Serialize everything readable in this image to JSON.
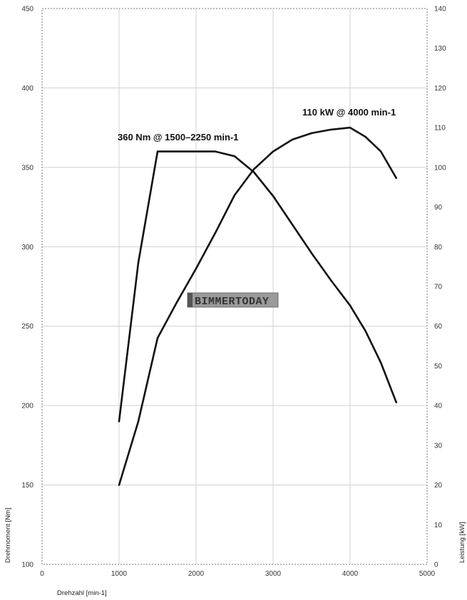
{
  "chart_data": {
    "type": "line",
    "title": "",
    "xlabel": "Drehzahl [min-1]",
    "ylabel_left": "Drehmoment [Nm]",
    "ylabel_right": "Leistung [kW]",
    "xlim": [
      0,
      5000
    ],
    "ylim_left": [
      100,
      450
    ],
    "ylim_right": [
      0,
      140
    ],
    "x_ticks": [
      0,
      1000,
      2000,
      3000,
      4000,
      5000
    ],
    "y_left_ticks": [
      100,
      150,
      200,
      250,
      300,
      350,
      400,
      450
    ],
    "y_right_ticks": [
      0,
      10,
      20,
      30,
      40,
      50,
      60,
      70,
      80,
      90,
      100,
      110,
      120,
      130,
      140
    ],
    "grid": true,
    "series": [
      {
        "axis": "left",
        "x": [
          1000,
          1250,
          1500,
          1750,
          2000,
          2250,
          2500,
          2750,
          3000,
          3250,
          3500,
          3750,
          4000,
          4200,
          4400,
          4600
        ],
        "values": [
          190,
          290,
          360,
          360,
          360,
          360,
          357,
          347,
          332,
          314,
          296,
          279,
          263,
          247,
          227,
          202
        ]
      },
      {
        "axis": "right",
        "x": [
          1000,
          1250,
          1500,
          1750,
          2000,
          2250,
          2500,
          2750,
          3000,
          3250,
          3500,
          3750,
          4000,
          4200,
          4400,
          4600
        ],
        "values": [
          20,
          36,
          57,
          66,
          74.5,
          83.5,
          93,
          99.5,
          104,
          107,
          108.6,
          109.5,
          110,
          107.7,
          104,
          97.3
        ]
      }
    ],
    "annotations": [
      {
        "text": "360 Nm @ 1500–2250 min-1",
        "axis": "left",
        "x": 1500,
        "y": 360
      },
      {
        "text": "110 kW @ 4000 min-1",
        "axis": "right",
        "x": 4000,
        "y": 110
      }
    ]
  },
  "watermark": {
    "text": "BIMMERTODAY"
  }
}
